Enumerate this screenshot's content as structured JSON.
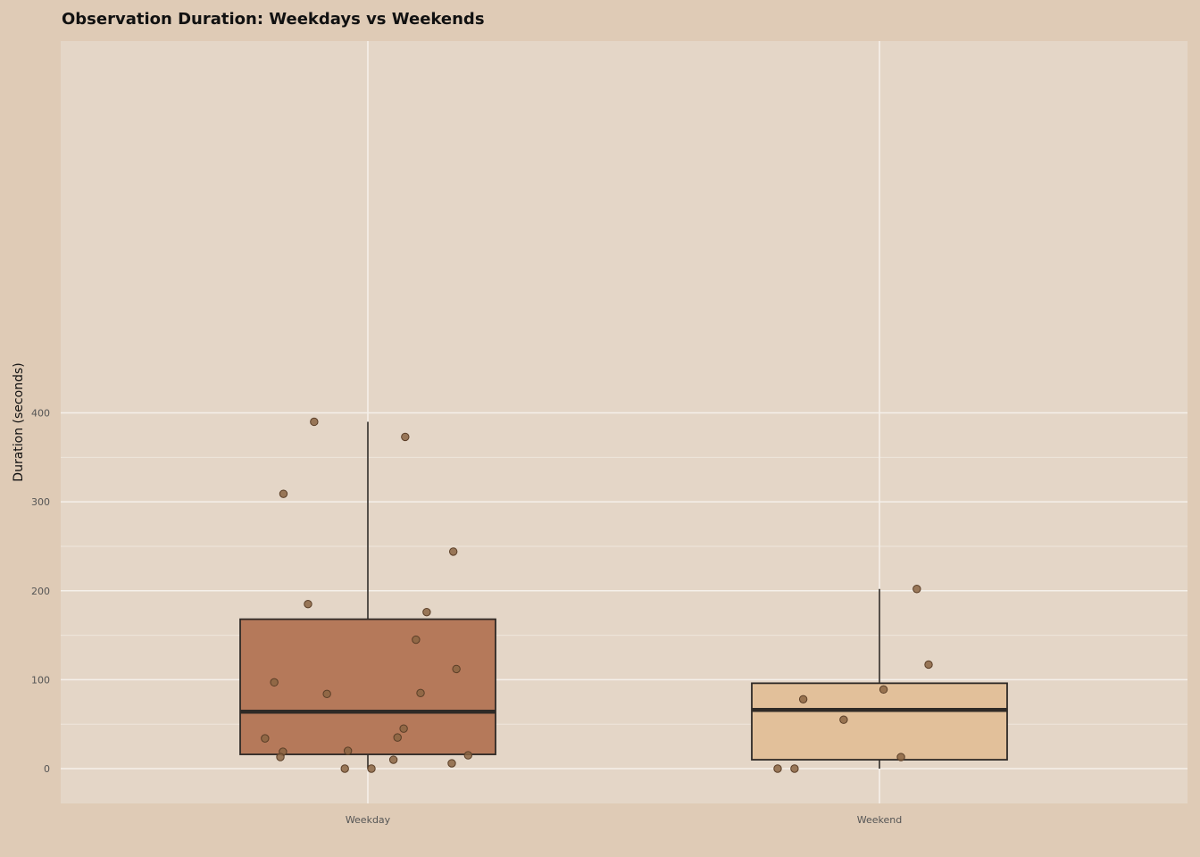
{
  "colors": {
    "background": "#dfcbb6",
    "panel": "#e4d6c7",
    "grid": "#f5f0ea",
    "box_weekday": "#b5795a",
    "box_weekend": "#e2c09a",
    "outline": "#2f2a26",
    "point": "#8b6543",
    "point_stroke": "#5a3e27"
  },
  "chart_data": {
    "type": "box",
    "title": "Observation Duration: Weekdays vs Weekends",
    "xlabel": "",
    "ylabel": "Duration (seconds)",
    "categories": [
      "Weekday",
      "Weekend"
    ],
    "ylim": [
      -20,
      420
    ],
    "y_ticks": [
      0,
      100,
      200,
      300,
      400
    ],
    "y_tick_labels": [
      "0",
      "100",
      "200",
      "300",
      "400"
    ],
    "grid": true,
    "boxes": [
      {
        "category": "Weekday",
        "min": 0,
        "q1": 16,
        "median": 64,
        "q3": 168,
        "max": 390
      },
      {
        "category": "Weekend",
        "min": 0,
        "q1": 10,
        "median": 66,
        "q3": 96,
        "max": 202
      }
    ],
    "points": [
      {
        "category": "Weekday",
        "jitter": -0.105,
        "y": 390
      },
      {
        "category": "Weekday",
        "jitter": 0.073,
        "y": 373
      },
      {
        "category": "Weekday",
        "jitter": -0.165,
        "y": 309
      },
      {
        "category": "Weekday",
        "jitter": 0.167,
        "y": 244
      },
      {
        "category": "Weekday",
        "jitter": -0.117,
        "y": 185
      },
      {
        "category": "Weekday",
        "jitter": 0.115,
        "y": 176
      },
      {
        "category": "Weekday",
        "jitter": 0.094,
        "y": 145
      },
      {
        "category": "Weekday",
        "jitter": 0.173,
        "y": 112
      },
      {
        "category": "Weekday",
        "jitter": -0.183,
        "y": 97
      },
      {
        "category": "Weekday",
        "jitter": -0.08,
        "y": 84
      },
      {
        "category": "Weekday",
        "jitter": 0.103,
        "y": 85
      },
      {
        "category": "Weekday",
        "jitter": 0.07,
        "y": 45
      },
      {
        "category": "Weekday",
        "jitter": 0.058,
        "y": 35
      },
      {
        "category": "Weekday",
        "jitter": -0.201,
        "y": 34
      },
      {
        "category": "Weekday",
        "jitter": -0.166,
        "y": 19
      },
      {
        "category": "Weekday",
        "jitter": -0.039,
        "y": 20
      },
      {
        "category": "Weekday",
        "jitter": 0.196,
        "y": 15
      },
      {
        "category": "Weekday",
        "jitter": -0.171,
        "y": 13
      },
      {
        "category": "Weekday",
        "jitter": 0.05,
        "y": 10
      },
      {
        "category": "Weekday",
        "jitter": 0.164,
        "y": 6
      },
      {
        "category": "Weekday",
        "jitter": -0.045,
        "y": 0
      },
      {
        "category": "Weekday",
        "jitter": 0.007,
        "y": 0
      },
      {
        "category": "Weekend",
        "jitter": 0.073,
        "y": 202
      },
      {
        "category": "Weekend",
        "jitter": 0.096,
        "y": 117
      },
      {
        "category": "Weekend",
        "jitter": 0.008,
        "y": 89
      },
      {
        "category": "Weekend",
        "jitter": -0.149,
        "y": 78
      },
      {
        "category": "Weekend",
        "jitter": -0.07,
        "y": 55
      },
      {
        "category": "Weekend",
        "jitter": 0.042,
        "y": 13
      },
      {
        "category": "Weekend",
        "jitter": -0.199,
        "y": 0
      },
      {
        "category": "Weekend",
        "jitter": -0.166,
        "y": 0
      }
    ]
  }
}
